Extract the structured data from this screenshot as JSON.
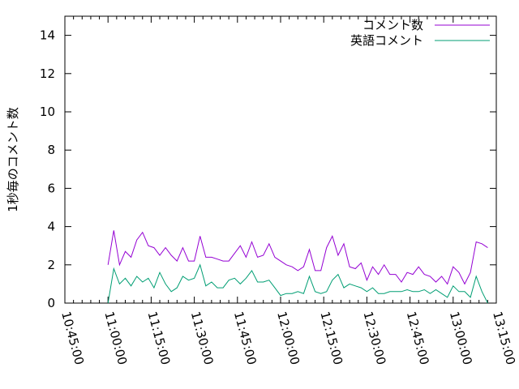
{
  "chart_data": {
    "type": "line",
    "title": "",
    "xlabel": "",
    "ylabel": "1秒毎のコメント数",
    "ylim": [
      0,
      15
    ],
    "yticks": [
      "0",
      "2",
      "4",
      "6",
      "8",
      "10",
      "12",
      "14"
    ],
    "xlim": [
      "10:45:00",
      "13:15:00"
    ],
    "xticks": [
      "10:45:00",
      "11:00:00",
      "11:15:00",
      "11:30:00",
      "11:45:00",
      "12:00:00",
      "12:15:00",
      "12:30:00",
      "12:45:00",
      "13:00:00",
      "13:15:00"
    ],
    "grid": false,
    "legend_position": "top-right",
    "x": [
      "11:00",
      "11:02",
      "11:04",
      "11:06",
      "11:08",
      "11:10",
      "11:12",
      "11:14",
      "11:16",
      "11:18",
      "11:20",
      "11:22",
      "11:24",
      "11:26",
      "11:28",
      "11:30",
      "11:32",
      "11:34",
      "11:36",
      "11:38",
      "11:40",
      "11:42",
      "11:44",
      "11:46",
      "11:48",
      "11:50",
      "11:52",
      "11:54",
      "11:56",
      "11:58",
      "12:00",
      "12:02",
      "12:04",
      "12:06",
      "12:08",
      "12:10",
      "12:12",
      "12:14",
      "12:16",
      "12:18",
      "12:20",
      "12:22",
      "12:24",
      "12:26",
      "12:28",
      "12:30",
      "12:32",
      "12:34",
      "12:36",
      "12:38",
      "12:40",
      "12:42",
      "12:44",
      "12:46",
      "12:48",
      "12:50",
      "12:52",
      "12:54",
      "12:56",
      "12:58",
      "13:00",
      "13:02",
      "13:04",
      "13:06",
      "13:08",
      "13:10",
      "13:12"
    ],
    "series": [
      {
        "name": "コメント数",
        "color": "#9400d3",
        "values": [
          2.0,
          3.8,
          2.0,
          2.7,
          2.4,
          3.3,
          3.7,
          3.0,
          2.9,
          2.5,
          2.9,
          2.5,
          2.2,
          2.9,
          2.2,
          2.2,
          3.5,
          2.4,
          2.4,
          2.3,
          2.2,
          2.2,
          2.6,
          3.0,
          2.4,
          3.2,
          2.4,
          2.5,
          3.1,
          2.4,
          2.2,
          2.0,
          1.9,
          1.7,
          1.9,
          2.8,
          1.7,
          1.7,
          2.9,
          3.5,
          2.5,
          3.1,
          1.9,
          1.8,
          2.1,
          1.2,
          1.9,
          1.5,
          2.0,
          1.5,
          1.5,
          1.1,
          1.6,
          1.5,
          1.9,
          1.5,
          1.4,
          1.1,
          1.4,
          1.0,
          1.9,
          1.6,
          1.0,
          1.6,
          3.2,
          3.1,
          2.9
        ]
      },
      {
        "name": "英語コメント",
        "color": "#009e73",
        "values": [
          0.0,
          1.8,
          1.0,
          1.3,
          0.9,
          1.4,
          1.1,
          1.3,
          0.8,
          1.6,
          1.0,
          0.6,
          0.8,
          1.4,
          1.2,
          1.3,
          2.0,
          0.9,
          1.1,
          0.8,
          0.8,
          1.2,
          1.3,
          1.0,
          1.3,
          1.7,
          1.1,
          1.1,
          1.2,
          0.8,
          0.4,
          0.5,
          0.5,
          0.6,
          0.5,
          1.4,
          0.6,
          0.5,
          0.6,
          1.2,
          1.5,
          0.8,
          1.0,
          0.9,
          0.8,
          0.6,
          0.8,
          0.5,
          0.5,
          0.6,
          0.6,
          0.6,
          0.7,
          0.6,
          0.6,
          0.7,
          0.5,
          0.7,
          0.5,
          0.3,
          0.9,
          0.6,
          0.6,
          0.3,
          1.4,
          0.6,
          0.0
        ]
      }
    ]
  }
}
